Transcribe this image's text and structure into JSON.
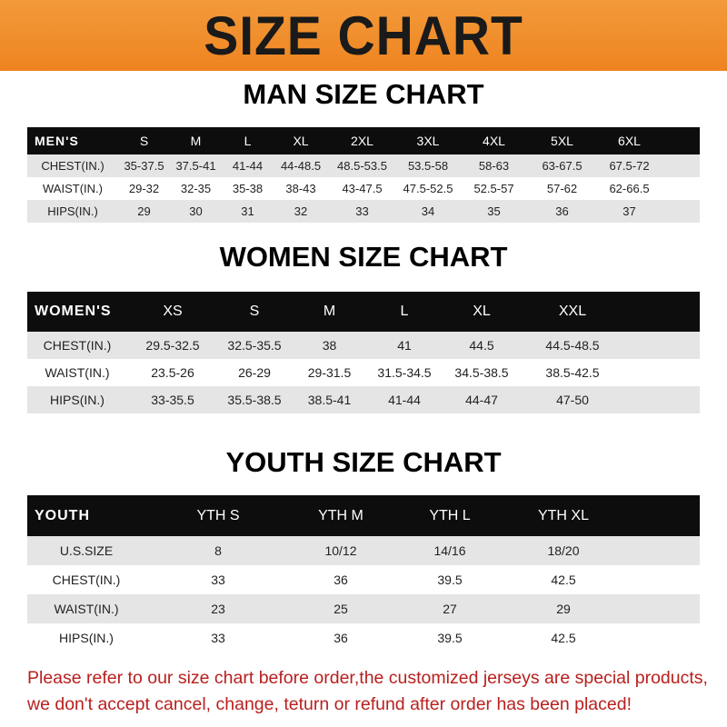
{
  "title": "SIZE CHART",
  "men": {
    "title": "MAN SIZE CHART",
    "header": "MEN'S",
    "sizes": [
      "S",
      "M",
      "L",
      "XL",
      "2XL",
      "3XL",
      "4XL",
      "5XL",
      "6XL"
    ],
    "rows": [
      {
        "label": "CHEST(IN.)",
        "values": [
          "35-37.5",
          "37.5-41",
          "41-44",
          "44-48.5",
          "48.5-53.5",
          "53.5-58",
          "58-63",
          "63-67.5",
          "67.5-72"
        ]
      },
      {
        "label": "WAIST(IN.)",
        "values": [
          "29-32",
          "32-35",
          "35-38",
          "38-43",
          "43-47.5",
          "47.5-52.5",
          "52.5-57",
          "57-62",
          "62-66.5"
        ]
      },
      {
        "label": "HIPS(IN.)",
        "values": [
          "29",
          "30",
          "31",
          "32",
          "33",
          "34",
          "35",
          "36",
          "37"
        ]
      }
    ]
  },
  "women": {
    "title": "WOMEN SIZE CHART",
    "header": "WOMEN'S",
    "sizes": [
      "XS",
      "S",
      "M",
      "L",
      "XL",
      "XXL"
    ],
    "rows": [
      {
        "label": "CHEST(IN.)",
        "values": [
          "29.5-32.5",
          "32.5-35.5",
          "38",
          "41",
          "44.5",
          "44.5-48.5"
        ]
      },
      {
        "label": "WAIST(IN.)",
        "values": [
          "23.5-26",
          "26-29",
          "29-31.5",
          "31.5-34.5",
          "34.5-38.5",
          "38.5-42.5"
        ]
      },
      {
        "label": "HIPS(IN.)",
        "values": [
          "33-35.5",
          "35.5-38.5",
          "38.5-41",
          "41-44",
          "44-47",
          "47-50"
        ]
      }
    ]
  },
  "youth": {
    "title": "YOUTH SIZE CHART",
    "header": "YOUTH",
    "sizes": [
      "YTH S",
      "YTH M",
      "YTH L",
      "YTH XL"
    ],
    "rows": [
      {
        "label": "U.S.SIZE",
        "values": [
          "8",
          "10/12",
          "14/16",
          "18/20"
        ]
      },
      {
        "label": "CHEST(IN.)",
        "values": [
          "33",
          "36",
          "39.5",
          "42.5"
        ]
      },
      {
        "label": "WAIST(IN.)",
        "values": [
          "23",
          "25",
          "27",
          "29"
        ]
      },
      {
        "label": "HIPS(IN.)",
        "values": [
          "33",
          "36",
          "39.5",
          "42.5"
        ]
      }
    ]
  },
  "notice": [
    "Please refer to our size chart before order,the customized jerseys are special products,",
    "we don't accept cancel, change, teturn or refund after order has been placed!"
  ],
  "colors": {
    "banner": "#ee8420",
    "header_row": "#0d0d0d",
    "stripe": "#e5e5e5",
    "notice": "#b8201e"
  }
}
